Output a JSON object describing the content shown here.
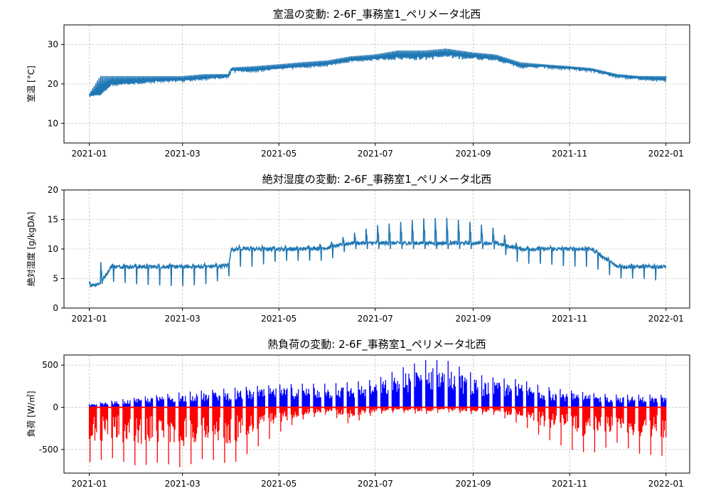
{
  "chart_data": [
    {
      "type": "line",
      "title": "室温の変動: 2-6F_事務室1_ペリメータ北西",
      "xlabel": "",
      "ylabel": "室温 [°C]",
      "xlim": [
        "2020-12-16",
        "2022-01-16"
      ],
      "ylim": [
        5,
        35
      ],
      "x_ticks": [
        "2021-01",
        "2021-03",
        "2021-05",
        "2021-07",
        "2021-09",
        "2021-11",
        "2022-01"
      ],
      "y_ticks": [
        10,
        20,
        30
      ],
      "grid": true,
      "colors": {
        "line": "#1f77b4"
      },
      "series": [
        {
          "values": [
            [
              "2021-01-01",
              17
            ],
            [
              "2021-01-08",
              17.5
            ],
            [
              "2021-01-15",
              20
            ],
            [
              "2021-02-01",
              20.5
            ],
            [
              "2021-02-15",
              21
            ],
            [
              "2021-03-01",
              21
            ],
            [
              "2021-03-15",
              21.5
            ],
            [
              "2021-03-30",
              22
            ],
            [
              "2021-04-01",
              23.5
            ],
            [
              "2021-04-15",
              23.5
            ],
            [
              "2021-05-01",
              24
            ],
            [
              "2021-05-15",
              24.5
            ],
            [
              "2021-06-01",
              25
            ],
            [
              "2021-06-15",
              26
            ],
            [
              "2021-07-01",
              26.5
            ],
            [
              "2021-07-15",
              27
            ],
            [
              "2021-08-01",
              27
            ],
            [
              "2021-08-15",
              27.5
            ],
            [
              "2021-09-01",
              27
            ],
            [
              "2021-09-15",
              26.5
            ],
            [
              "2021-10-01",
              24.5
            ],
            [
              "2021-10-15",
              24.5
            ],
            [
              "2021-11-01",
              24
            ],
            [
              "2021-11-15",
              23.5
            ],
            [
              "2021-12-01",
              22
            ],
            [
              "2021-12-15",
              21.5
            ],
            [
              "2022-01-01",
              21
            ]
          ],
          "upper": [
            17.5,
            22,
            22,
            22,
            22,
            22,
            22.5,
            22.5,
            24.2,
            24.5,
            25,
            25.5,
            26,
            27,
            27.5,
            28.5,
            28.5,
            29,
            28,
            27.5,
            25.5,
            25,
            24.5,
            24,
            22.5,
            22,
            22
          ],
          "lower": [
            16.8,
            17,
            19.5,
            20,
            20,
            20.5,
            21,
            21.5,
            23,
            23,
            23.8,
            24,
            24.5,
            25.5,
            26,
            26,
            26,
            26.5,
            26,
            26,
            24,
            24,
            23.5,
            23,
            21.5,
            21,
            20.5
          ]
        }
      ]
    },
    {
      "type": "line",
      "title": "絶対湿度の変動: 2-6F_事務室1_ペリメータ北西",
      "xlabel": "",
      "ylabel": "絶対湿度 [g/kgDA]",
      "xlim": [
        "2020-12-16",
        "2022-01-16"
      ],
      "ylim": [
        0,
        20
      ],
      "x_ticks": [
        "2021-01",
        "2021-03",
        "2021-05",
        "2021-07",
        "2021-09",
        "2021-11",
        "2022-01"
      ],
      "y_ticks": [
        0,
        5,
        10,
        15,
        20
      ],
      "grid": true,
      "colors": {
        "line": "#1f77b4"
      },
      "series": [
        {
          "values": [
            [
              "2021-01-01",
              3.8
            ],
            [
              "2021-01-08",
              4.2
            ],
            [
              "2021-01-15",
              7
            ],
            [
              "2021-02-01",
              7
            ],
            [
              "2021-02-15",
              7
            ],
            [
              "2021-03-01",
              7
            ],
            [
              "2021-03-15",
              7
            ],
            [
              "2021-03-30",
              7.2
            ],
            [
              "2021-04-01",
              10
            ],
            [
              "2021-04-15",
              10
            ],
            [
              "2021-05-01",
              10
            ],
            [
              "2021-05-15",
              10
            ],
            [
              "2021-06-01",
              10.2
            ],
            [
              "2021-06-15",
              11
            ],
            [
              "2021-07-01",
              11
            ],
            [
              "2021-07-15",
              11
            ],
            [
              "2021-08-01",
              11
            ],
            [
              "2021-08-15",
              11
            ],
            [
              "2021-09-01",
              11
            ],
            [
              "2021-09-15",
              11
            ],
            [
              "2021-10-01",
              10
            ],
            [
              "2021-10-15",
              10
            ],
            [
              "2021-11-01",
              10
            ],
            [
              "2021-11-15",
              10
            ],
            [
              "2021-12-01",
              7
            ],
            [
              "2021-12-15",
              7
            ],
            [
              "2022-01-01",
              7
            ]
          ],
          "peaks": [
            4.5,
            7.8,
            7.5,
            7.5,
            7.5,
            7.3,
            7.5,
            7.5,
            10.5,
            10.5,
            10.5,
            10.5,
            11,
            12.5,
            14,
            14.5,
            15.2,
            15.3,
            14.5,
            13.5,
            10.5,
            10.5,
            10.3,
            10.3,
            7.5,
            7.5,
            7.2
          ],
          "dips": [
            3.7,
            4,
            4.5,
            4,
            3.8,
            3.7,
            4,
            5,
            7,
            7,
            8,
            8,
            8,
            10,
            10,
            10,
            10,
            10,
            10,
            10,
            7.5,
            7.5,
            7,
            7,
            5,
            5,
            4.5
          ]
        }
      ]
    },
    {
      "type": "bar",
      "title": "熱負荷の変動: 2-6F_事務室1_ペリメータ北西",
      "xlabel": "",
      "ylabel": "負荷 [W/㎡]",
      "xlim": [
        "2020-12-16",
        "2022-01-16"
      ],
      "ylim": [
        -780,
        620
      ],
      "x_ticks": [
        "2021-01",
        "2021-03",
        "2021-05",
        "2021-07",
        "2021-09",
        "2021-11",
        "2022-01"
      ],
      "y_ticks": [
        -500,
        0,
        500
      ],
      "grid": true,
      "colors": {
        "positive": "#0000ff",
        "negative": "#ff0000"
      },
      "series": [
        {
          "dates": [
            "2021-01-01",
            "2021-01-15",
            "2021-02-01",
            "2021-02-15",
            "2021-03-01",
            "2021-03-15",
            "2021-04-01",
            "2021-04-15",
            "2021-05-01",
            "2021-05-15",
            "2021-06-01",
            "2021-06-15",
            "2021-07-01",
            "2021-07-15",
            "2021-08-01",
            "2021-08-15",
            "2021-09-01",
            "2021-09-15",
            "2021-10-01",
            "2021-10-15",
            "2021-11-01",
            "2021-11-15",
            "2021-12-01",
            "2021-12-15",
            "2022-01-01"
          ],
          "positive": [
            40,
            80,
            120,
            150,
            180,
            200,
            230,
            250,
            270,
            280,
            280,
            300,
            330,
            450,
            560,
            560,
            400,
            350,
            330,
            250,
            200,
            170,
            150,
            150,
            150
          ],
          "negative": [
            -650,
            -600,
            -700,
            -650,
            -720,
            -600,
            -680,
            -500,
            -300,
            -150,
            -80,
            -200,
            -80,
            -60,
            -80,
            -60,
            -80,
            -90,
            -200,
            -350,
            -500,
            -550,
            -420,
            -550,
            -580
          ]
        }
      ]
    }
  ]
}
